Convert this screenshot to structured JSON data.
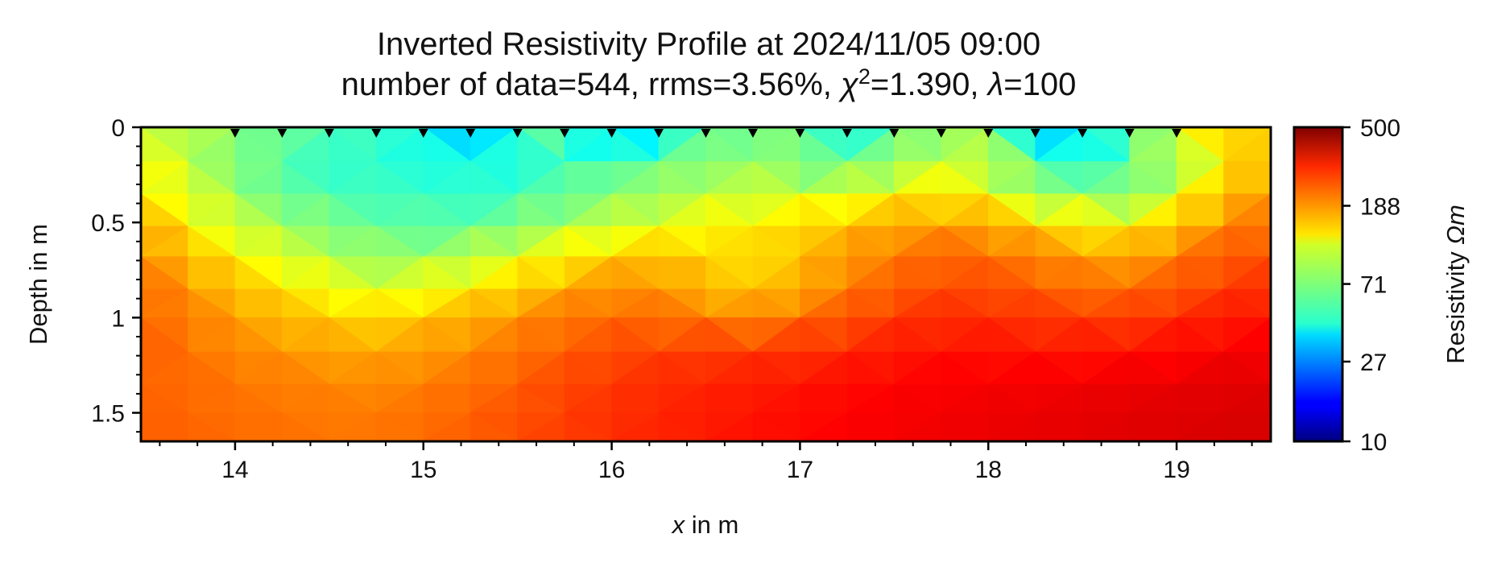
{
  "chart_data": {
    "type": "heatmap",
    "title": "Inverted Resistivity Profile at 2024/11/05 09:00",
    "subtitle": {
      "prefix": "number of data=544, rrms=3.56%, ",
      "chi_symbol": "χ",
      "chi_exponent": "2",
      "chi_value": "=1.390, ",
      "lambda_symbol": "λ",
      "lambda_value": "=100"
    },
    "xlabel": {
      "var": "x",
      "rest": " in m"
    },
    "ylabel": "Depth in m",
    "xlim": [
      13.5,
      19.5
    ],
    "ylim": [
      1.65,
      0
    ],
    "x_ticks": [
      "14",
      "15",
      "16",
      "17",
      "18",
      "19"
    ],
    "y_ticks": [
      "0",
      "0.5",
      "1",
      "1.5"
    ],
    "electrodes_x": [
      14.0,
      14.25,
      14.5,
      14.75,
      15.0,
      15.25,
      15.5,
      15.75,
      16.0,
      16.25,
      16.5,
      16.75,
      17.0,
      17.25,
      17.5,
      17.75,
      18.0,
      18.25,
      18.5,
      18.75,
      19.0
    ],
    "colorbar": {
      "label": {
        "text": "Resistivity ",
        "unit": "Ωm"
      },
      "scale": "log",
      "colormap": "jet",
      "range": [
        10,
        500
      ],
      "ticks": [
        "10",
        "27",
        "71",
        "188",
        "500"
      ]
    },
    "depth_grid": [
      0,
      0.18,
      0.35,
      0.52,
      0.68,
      0.85,
      1.0,
      1.18,
      1.35,
      1.5,
      1.65
    ],
    "x_grid": [
      13.5,
      13.75,
      14.0,
      14.25,
      14.5,
      14.75,
      15.0,
      15.25,
      15.5,
      15.75,
      16.0,
      16.25,
      16.5,
      16.75,
      17.0,
      17.25,
      17.5,
      17.75,
      18.0,
      18.25,
      18.5,
      18.75,
      19.0,
      19.25,
      19.5
    ],
    "resistivity_grid": [
      [
        95,
        85,
        75,
        68,
        60,
        55,
        48,
        25,
        55,
        70,
        28,
        40,
        60,
        65,
        70,
        40,
        65,
        72,
        85,
        30,
        35,
        65,
        110,
        140,
        150
      ],
      [
        115,
        90,
        70,
        58,
        52,
        50,
        48,
        46,
        45,
        58,
        62,
        66,
        72,
        78,
        68,
        58,
        80,
        88,
        90,
        55,
        52,
        60,
        75,
        120,
        150
      ],
      [
        130,
        100,
        80,
        64,
        58,
        56,
        55,
        52,
        56,
        62,
        70,
        80,
        88,
        92,
        95,
        105,
        115,
        130,
        110,
        80,
        72,
        70,
        100,
        150,
        170
      ],
      [
        165,
        120,
        95,
        82,
        72,
        64,
        60,
        62,
        72,
        85,
        95,
        105,
        118,
        125,
        135,
        150,
        160,
        175,
        165,
        140,
        125,
        120,
        150,
        185,
        200
      ],
      [
        185,
        150,
        120,
        100,
        85,
        78,
        80,
        90,
        105,
        120,
        140,
        150,
        135,
        130,
        145,
        170,
        190,
        210,
        200,
        190,
        165,
        160,
        190,
        215,
        230
      ],
      [
        200,
        175,
        150,
        130,
        112,
        100,
        110,
        120,
        140,
        160,
        180,
        175,
        150,
        140,
        160,
        190,
        215,
        235,
        230,
        220,
        200,
        205,
        220,
        245,
        260
      ],
      [
        210,
        190,
        165,
        150,
        140,
        135,
        145,
        160,
        175,
        195,
        205,
        200,
        190,
        180,
        200,
        225,
        245,
        260,
        255,
        250,
        240,
        240,
        260,
        275,
        290
      ],
      [
        215,
        200,
        185,
        175,
        165,
        160,
        170,
        180,
        200,
        215,
        230,
        240,
        245,
        250,
        255,
        265,
        280,
        290,
        290,
        285,
        285,
        290,
        300,
        310,
        320
      ],
      [
        210,
        205,
        195,
        190,
        185,
        180,
        190,
        200,
        215,
        235,
        250,
        260,
        270,
        275,
        285,
        295,
        305,
        310,
        315,
        320,
        325,
        330,
        335,
        340,
        345
      ],
      [
        212,
        208,
        200,
        195,
        192,
        190,
        200,
        210,
        225,
        240,
        255,
        265,
        275,
        285,
        295,
        305,
        315,
        320,
        325,
        330,
        335,
        340,
        345,
        350,
        355
      ],
      [
        215,
        210,
        205,
        200,
        198,
        196,
        205,
        215,
        230,
        245,
        260,
        270,
        280,
        290,
        300,
        310,
        318,
        325,
        330,
        335,
        340,
        345,
        350,
        355,
        360
      ]
    ]
  }
}
